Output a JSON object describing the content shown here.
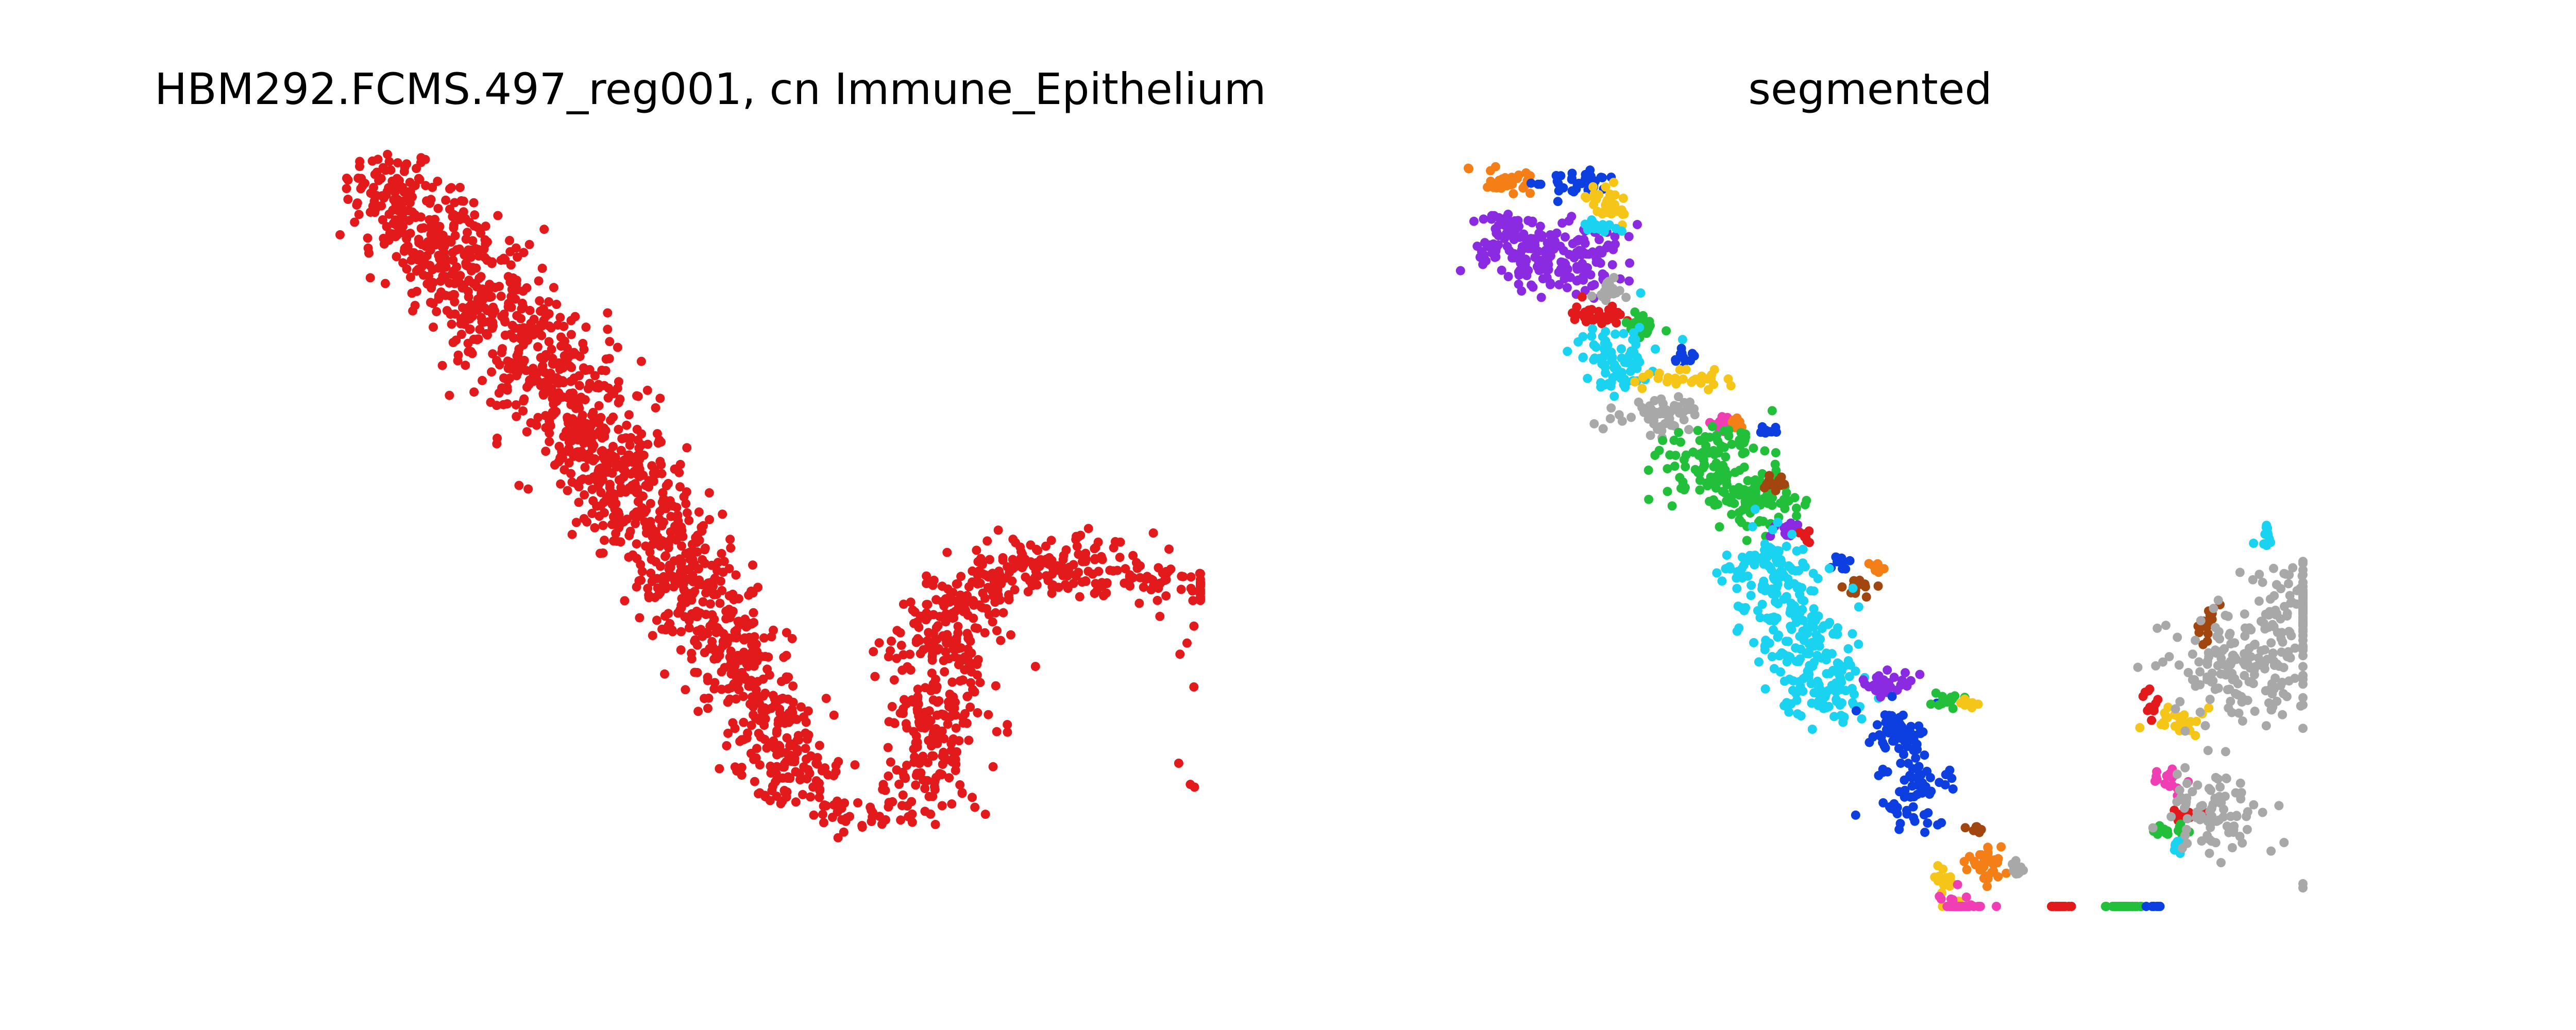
{
  "panels": [
    {
      "title": "HBM292.FCMS.497_reg001, cn Immune_Epithelium"
    },
    {
      "title": "segmented"
    }
  ],
  "colors": {
    "red": "#e31a1c",
    "orange": "#f57f17",
    "blue": "#0d3fe0",
    "yellow": "#f5c518",
    "cyan": "#19d3f0",
    "purple": "#8a2be2",
    "gray": "#a8a8a8",
    "green": "#22c03a",
    "pink": "#f03fb5",
    "brown": "#a0460e"
  },
  "chart_data": [
    {
      "type": "scatter",
      "title": "HBM292.FCMS.497_reg001, cn Immune_Epithelium",
      "xlabel": "",
      "ylabel": "",
      "axes": "off",
      "xlim": [
        0,
        1000
      ],
      "ylim": [
        0,
        1000
      ],
      "series": [
        {
          "name": "Immune_Epithelium",
          "color": "red",
          "clusters": [
            {
              "x": 30,
              "y": 960,
              "sx": 28,
              "sy": 28,
              "n": 70
            },
            {
              "x": 80,
              "y": 900,
              "sx": 45,
              "sy": 35,
              "n": 150
            },
            {
              "x": 130,
              "y": 830,
              "sx": 40,
              "sy": 35,
              "n": 130
            },
            {
              "x": 175,
              "y": 760,
              "sx": 40,
              "sy": 35,
              "n": 130
            },
            {
              "x": 225,
              "y": 690,
              "sx": 40,
              "sy": 35,
              "n": 130
            },
            {
              "x": 270,
              "y": 620,
              "sx": 40,
              "sy": 35,
              "n": 130
            },
            {
              "x": 310,
              "y": 550,
              "sx": 40,
              "sy": 30,
              "n": 120
            },
            {
              "x": 350,
              "y": 480,
              "sx": 35,
              "sy": 30,
              "n": 110
            },
            {
              "x": 390,
              "y": 410,
              "sx": 35,
              "sy": 30,
              "n": 110
            },
            {
              "x": 430,
              "y": 340,
              "sx": 30,
              "sy": 28,
              "n": 100
            },
            {
              "x": 460,
              "y": 270,
              "sx": 30,
              "sy": 28,
              "n": 90
            },
            {
              "x": 490,
              "y": 200,
              "sx": 28,
              "sy": 25,
              "n": 80
            },
            {
              "x": 520,
              "y": 130,
              "sx": 30,
              "sy": 22,
              "n": 70
            },
            {
              "x": 600,
              "y": 80,
              "sx": 40,
              "sy": 14,
              "n": 40
            },
            {
              "x": 680,
              "y": 140,
              "sx": 30,
              "sy": 25,
              "n": 70
            },
            {
              "x": 690,
              "y": 220,
              "sx": 35,
              "sy": 25,
              "n": 90
            },
            {
              "x": 700,
              "y": 310,
              "sx": 35,
              "sy": 25,
              "n": 90
            },
            {
              "x": 720,
              "y": 380,
              "sx": 30,
              "sy": 22,
              "n": 70
            },
            {
              "x": 780,
              "y": 420,
              "sx": 30,
              "sy": 18,
              "n": 60
            },
            {
              "x": 860,
              "y": 430,
              "sx": 45,
              "sy": 22,
              "n": 90
            },
            {
              "x": 960,
              "y": 400,
              "sx": 50,
              "sy": 18,
              "n": 60
            },
            {
              "x": 1000,
              "y": 300,
              "sx": 8,
              "sy": 40,
              "n": 5
            },
            {
              "x": 1000,
              "y": 120,
              "sx": 3,
              "sy": 3,
              "n": 2
            }
          ]
        }
      ]
    },
    {
      "type": "scatter",
      "title": "segmented",
      "xlabel": "",
      "ylabel": "",
      "axes": "off",
      "xlim": [
        0,
        1000
      ],
      "ylim": [
        0,
        1000
      ],
      "series": [
        {
          "name": "segment-orange-top",
          "color": "orange",
          "clusters": [
            {
              "x": 30,
              "y": 970,
              "sx": 16,
              "sy": 10,
              "n": 35
            }
          ]
        },
        {
          "name": "segment-blue-top",
          "color": "blue",
          "clusters": [
            {
              "x": 110,
              "y": 965,
              "sx": 25,
              "sy": 8,
              "n": 35
            }
          ]
        },
        {
          "name": "segment-yellow-top",
          "color": "yellow",
          "clusters": [
            {
              "x": 150,
              "y": 935,
              "sx": 14,
              "sy": 14,
              "n": 35
            }
          ]
        },
        {
          "name": "segment-purple-top",
          "color": "purple",
          "clusters": [
            {
              "x": 40,
              "y": 880,
              "sx": 30,
              "sy": 25,
              "n": 110
            },
            {
              "x": 120,
              "y": 860,
              "sx": 35,
              "sy": 25,
              "n": 100
            }
          ]
        },
        {
          "name": "segment-cyan-top",
          "color": "cyan",
          "clusters": [
            {
              "x": 140,
              "y": 905,
              "sx": 12,
              "sy": 6,
              "n": 20
            }
          ]
        },
        {
          "name": "segment-gray-top",
          "color": "gray",
          "clusters": [
            {
              "x": 160,
              "y": 815,
              "sx": 10,
              "sy": 8,
              "n": 20
            }
          ]
        },
        {
          "name": "segment-red-upper",
          "color": "red",
          "clusters": [
            {
              "x": 140,
              "y": 780,
              "sx": 20,
              "sy": 8,
              "n": 35
            }
          ]
        },
        {
          "name": "segment-green-upper",
          "color": "green",
          "clusters": [
            {
              "x": 200,
              "y": 765,
              "sx": 10,
              "sy": 8,
              "n": 30
            }
          ]
        },
        {
          "name": "segment-cyan-upper",
          "color": "cyan",
          "clusters": [
            {
              "x": 165,
              "y": 715,
              "sx": 25,
              "sy": 25,
              "n": 80
            }
          ]
        },
        {
          "name": "segment-blue-small-1",
          "color": "blue",
          "clusters": [
            {
              "x": 250,
              "y": 720,
              "sx": 8,
              "sy": 5,
              "n": 12
            }
          ]
        },
        {
          "name": "segment-yellow-mid",
          "color": "yellow",
          "clusters": [
            {
              "x": 245,
              "y": 690,
              "sx": 25,
              "sy": 6,
              "n": 30
            }
          ]
        },
        {
          "name": "segment-gray-mid",
          "color": "gray",
          "clusters": [
            {
              "x": 215,
              "y": 640,
              "sx": 30,
              "sy": 12,
              "n": 55
            }
          ]
        },
        {
          "name": "segment-pink-upper",
          "color": "pink",
          "clusters": [
            {
              "x": 300,
              "y": 625,
              "sx": 8,
              "sy": 6,
              "n": 15
            }
          ]
        },
        {
          "name": "segment-orange-mid-1",
          "color": "orange",
          "clusters": [
            {
              "x": 320,
              "y": 630,
              "sx": 6,
              "sy": 5,
              "n": 8
            }
          ]
        },
        {
          "name": "segment-blue-small-2",
          "color": "blue",
          "clusters": [
            {
              "x": 355,
              "y": 618,
              "sx": 6,
              "sy": 4,
              "n": 8
            }
          ]
        },
        {
          "name": "segment-green-mid",
          "color": "green",
          "clusters": [
            {
              "x": 290,
              "y": 580,
              "sx": 35,
              "sy": 25,
              "n": 100
            },
            {
              "x": 340,
              "y": 520,
              "sx": 30,
              "sy": 22,
              "n": 80
            }
          ]
        },
        {
          "name": "segment-brown-mid",
          "color": "brown",
          "clusters": [
            {
              "x": 365,
              "y": 545,
              "sx": 8,
              "sy": 6,
              "n": 15
            }
          ]
        },
        {
          "name": "segment-purple-mid",
          "color": "purple",
          "clusters": [
            {
              "x": 380,
              "y": 480,
              "sx": 10,
              "sy": 6,
              "n": 15
            }
          ]
        },
        {
          "name": "segment-red-small-1",
          "color": "red",
          "clusters": [
            {
              "x": 400,
              "y": 470,
              "sx": 5,
              "sy": 5,
              "n": 8
            }
          ]
        },
        {
          "name": "segment-blue-small-3",
          "color": "blue",
          "clusters": [
            {
              "x": 445,
              "y": 435,
              "sx": 6,
              "sy": 5,
              "n": 10
            }
          ]
        },
        {
          "name": "segment-brown-small-1",
          "color": "brown",
          "clusters": [
            {
              "x": 470,
              "y": 400,
              "sx": 12,
              "sy": 6,
              "n": 15
            }
          ]
        },
        {
          "name": "segment-orange-small-2",
          "color": "orange",
          "clusters": [
            {
              "x": 490,
              "y": 425,
              "sx": 5,
              "sy": 5,
              "n": 8
            }
          ]
        },
        {
          "name": "segment-cyan-mid",
          "color": "cyan",
          "clusters": [
            {
              "x": 360,
              "y": 420,
              "sx": 30,
              "sy": 30,
              "n": 110
            },
            {
              "x": 400,
              "y": 330,
              "sx": 30,
              "sy": 30,
              "n": 100
            },
            {
              "x": 430,
              "y": 250,
              "sx": 25,
              "sy": 25,
              "n": 80
            }
          ]
        },
        {
          "name": "segment-purple-low",
          "color": "purple",
          "clusters": [
            {
              "x": 510,
              "y": 260,
              "sx": 20,
              "sy": 8,
              "n": 30
            }
          ]
        },
        {
          "name": "segment-blue-low",
          "color": "blue",
          "clusters": [
            {
              "x": 520,
              "y": 190,
              "sx": 18,
              "sy": 20,
              "n": 60
            },
            {
              "x": 540,
              "y": 110,
              "sx": 25,
              "sy": 30,
              "n": 60
            }
          ]
        },
        {
          "name": "segment-green-low-1",
          "color": "green",
          "clusters": [
            {
              "x": 575,
              "y": 240,
              "sx": 10,
              "sy": 5,
              "n": 15
            }
          ]
        },
        {
          "name": "segment-yellow-low-1",
          "color": "yellow",
          "clusters": [
            {
              "x": 605,
              "y": 235,
              "sx": 8,
              "sy": 5,
              "n": 12
            }
          ]
        },
        {
          "name": "segment-brown-low",
          "color": "brown",
          "clusters": [
            {
              "x": 615,
              "y": 55,
              "sx": 6,
              "sy": 5,
              "n": 10
            }
          ]
        },
        {
          "name": "segment-orange-low",
          "color": "orange",
          "clusters": [
            {
              "x": 630,
              "y": 10,
              "sx": 12,
              "sy": 12,
              "n": 35
            }
          ]
        },
        {
          "name": "segment-gray-low-1",
          "color": "gray",
          "clusters": [
            {
              "x": 665,
              "y": 0,
              "sx": 5,
              "sy": 10,
              "n": 12
            }
          ]
        },
        {
          "name": "segment-yellow-low-2",
          "color": "yellow",
          "clusters": [
            {
              "x": 580,
              "y": -20,
              "sx": 8,
              "sy": 18,
              "n": 20
            }
          ]
        },
        {
          "name": "segment-pink-low",
          "color": "pink",
          "clusters": [
            {
              "x": 595,
              "y": -60,
              "sx": 14,
              "sy": 14,
              "n": 30
            }
          ]
        },
        {
          "name": "segment-red-small-2",
          "color": "red",
          "clusters": [
            {
              "x": 720,
              "y": -80,
              "sx": 10,
              "sy": 10,
              "n": 20
            }
          ]
        },
        {
          "name": "segment-green-low-2",
          "color": "green",
          "clusters": [
            {
              "x": 805,
              "y": -85,
              "sx": 12,
              "sy": 12,
              "n": 30
            }
          ]
        },
        {
          "name": "segment-blue-small-4",
          "color": "blue",
          "clusters": [
            {
              "x": 840,
              "y": -100,
              "sx": 5,
              "sy": 5,
              "n": 8
            }
          ]
        },
        {
          "name": "segment-red-right",
          "color": "red",
          "clusters": [
            {
              "x": 835,
              "y": 235,
              "sx": 5,
              "sy": 12,
              "n": 12
            },
            {
              "x": 880,
              "y": 80,
              "sx": 12,
              "sy": 6,
              "n": 15
            }
          ]
        },
        {
          "name": "segment-yellow-right",
          "color": "yellow",
          "clusters": [
            {
              "x": 870,
              "y": 210,
              "sx": 18,
              "sy": 8,
              "n": 25
            }
          ]
        },
        {
          "name": "segment-pink-right",
          "color": "pink",
          "clusters": [
            {
              "x": 860,
              "y": 125,
              "sx": 8,
              "sy": 12,
              "n": 15
            }
          ]
        },
        {
          "name": "segment-green-right",
          "color": "green",
          "clusters": [
            {
              "x": 860,
              "y": 55,
              "sx": 10,
              "sy": 6,
              "n": 15
            }
          ]
        },
        {
          "name": "segment-cyan-right",
          "color": "cyan",
          "clusters": [
            {
              "x": 870,
              "y": 35,
              "sx": 6,
              "sy": 6,
              "n": 10
            },
            {
              "x": 980,
              "y": 470,
              "sx": 8,
              "sy": 12,
              "n": 12
            }
          ]
        },
        {
          "name": "segment-brown-right",
          "color": "brown",
          "clusters": [
            {
              "x": 905,
              "y": 345,
              "sx": 6,
              "sy": 14,
              "n": 15
            }
          ]
        },
        {
          "name": "segment-gray-right",
          "color": "gray",
          "clusters": [
            {
              "x": 940,
              "y": 280,
              "sx": 40,
              "sy": 40,
              "n": 150
            },
            {
              "x": 1040,
              "y": 370,
              "sx": 50,
              "sy": 30,
              "n": 110
            },
            {
              "x": 920,
              "y": 80,
              "sx": 30,
              "sy": 30,
              "n": 80
            },
            {
              "x": 1230,
              "y": 300,
              "sx": 15,
              "sy": 60,
              "n": 12
            },
            {
              "x": 1230,
              "y": -20,
              "sx": 3,
              "sy": 3,
              "n": 2
            }
          ]
        }
      ]
    }
  ]
}
